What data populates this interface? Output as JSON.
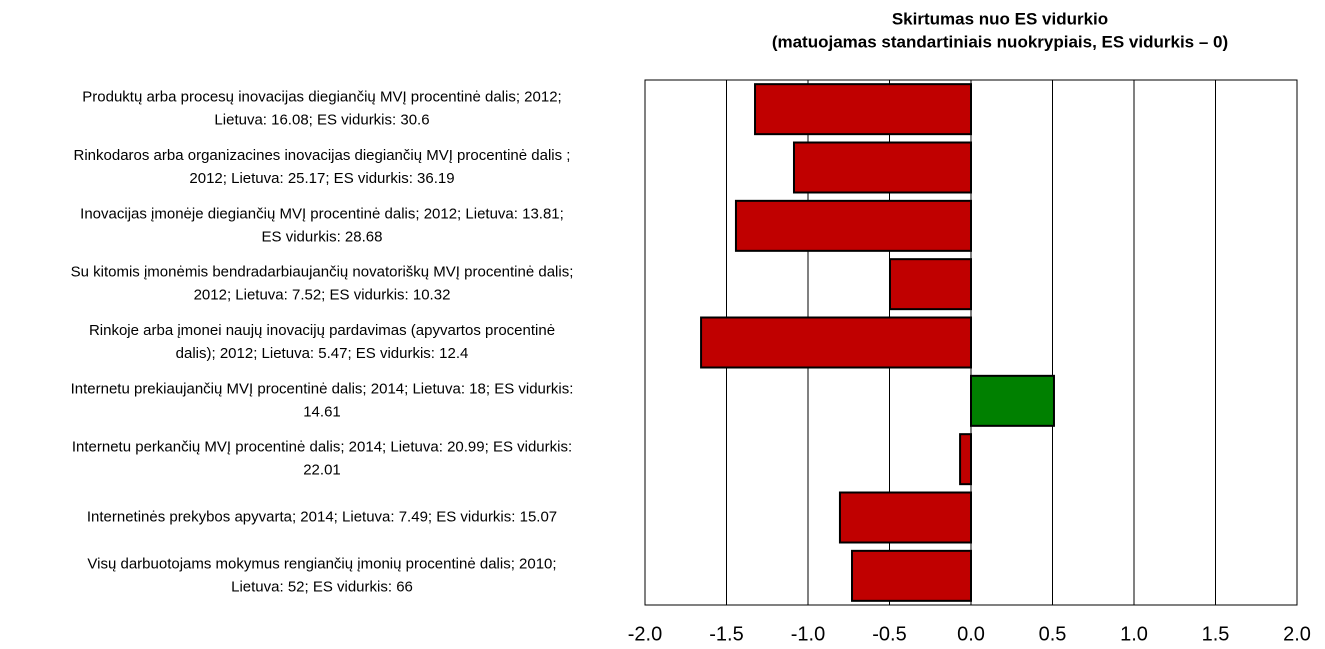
{
  "chart_data": {
    "type": "hbar",
    "title": "Skirtumas nuo ES vidurkio",
    "subtitle": "(matuojamas standartiniais nuokrypiais, ES vidurkis – 0)",
    "categories": [
      [
        "Produktų arba procesų inovacijas diegiančių MVĮ procentinė dalis; 2012;",
        "Lietuva: 16.08; ES vidurkis: 30.6"
      ],
      [
        "Rinkodaros arba organizacines inovacijas diegiančių MVĮ procentinė dalis ;",
        "2012; Lietuva: 25.17; ES vidurkis: 36.19"
      ],
      [
        "Inovacijas įmonėje diegiančių MVĮ procentinė dalis; 2012; Lietuva: 13.81;",
        "ES vidurkis: 28.68"
      ],
      [
        "Su kitomis įmonėmis bendradarbiaujančių novatoriškų MVĮ procentinė dalis;",
        "2012; Lietuva: 7.52; ES vidurkis: 10.32"
      ],
      [
        "Rinkoje arba įmonei naujų inovacijų pardavimas (apyvartos procentinė",
        "dalis); 2012; Lietuva: 5.47; ES vidurkis: 12.4"
      ],
      [
        "Internetu prekiaujančių MVĮ procentinė dalis; 2014; Lietuva: 18; ES vidurkis:",
        "14.61"
      ],
      [
        "Internetu perkančių MVĮ procentinė dalis; 2014; Lietuva: 20.99; ES vidurkis:",
        "22.01"
      ],
      [
        "Internetinės prekybos apyvarta; 2014; Lietuva: 7.49; ES vidurkis: 15.07"
      ],
      [
        "Visų darbuotojams mokymus rengiančių įmonių procentinė dalis; 2010;",
        "Lietuva: 52; ES vidurkis: 66"
      ]
    ],
    "values": [
      -1.325,
      -1.086,
      -1.442,
      -0.497,
      -1.656,
      0.509,
      -0.067,
      -0.804,
      -0.73
    ],
    "colors": [
      "#c00000",
      "#c00000",
      "#c00000",
      "#c00000",
      "#c00000",
      "#008000",
      "#c00000",
      "#c00000",
      "#c00000"
    ],
    "xlim": [
      -2,
      2
    ],
    "xticks": [
      {
        "value": -2,
        "label": "-2.0"
      },
      -1.5,
      {
        "value": -1,
        "label": "-1.0"
      },
      -0.5,
      {
        "value": 0,
        "label": "0.0"
      },
      0.5,
      {
        "value": 1,
        "label": "1.0"
      },
      1.5,
      {
        "value": 2,
        "label": "2.0"
      }
    ],
    "grid": true
  }
}
